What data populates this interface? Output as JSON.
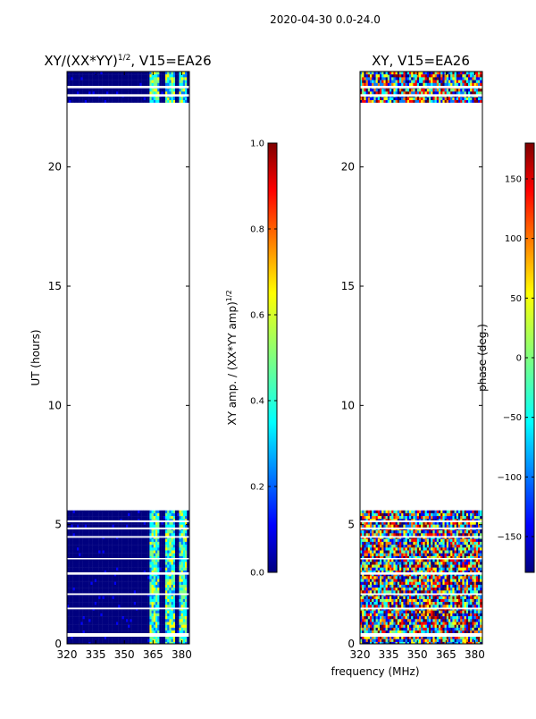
{
  "figure_title": "2020-04-30 0.0-24.0",
  "chart_data": [
    {
      "type": "heatmap",
      "title_main": "XY/(XX*YY)",
      "title_exp": "1/2",
      "title_tail": ", V15=EA26",
      "xlabel": "",
      "ylabel": "UT (hours)",
      "xlim": [
        320,
        384
      ],
      "ylim": [
        0,
        24
      ],
      "xticks": [
        320,
        335,
        350,
        365,
        380
      ],
      "yticks": [
        0,
        5,
        10,
        15,
        20
      ],
      "data_coverage_hours": [
        [
          0.0,
          5.6
        ],
        [
          22.7,
          24.0
        ]
      ],
      "flagged_gap_hours": [
        [
          0.3,
          0.45
        ],
        [
          1.45,
          1.52
        ],
        [
          2.05,
          2.12
        ],
        [
          2.9,
          3.0
        ],
        [
          3.55,
          3.6
        ],
        [
          4.45,
          4.52
        ],
        [
          4.8,
          4.88
        ],
        [
          5.1,
          5.18
        ],
        [
          22.95,
          23.05
        ],
        [
          23.3,
          23.4
        ]
      ],
      "bright_band_mhz": [
        [
          363,
          368
        ],
        [
          371,
          376
        ],
        [
          378,
          382
        ]
      ],
      "colormap": "jet",
      "colorbar": {
        "label_main": "XY amp. / (XX*YY amp)",
        "label_exp": "1/2",
        "range": [
          0.0,
          1.0
        ],
        "ticks": [
          "0.0",
          "0.2",
          "0.4",
          "0.6",
          "0.8",
          "1.0"
        ]
      }
    },
    {
      "type": "heatmap",
      "title": "XY, V15=EA26",
      "xlabel": "frequency (MHz)",
      "ylabel": "",
      "xlim": [
        320,
        384
      ],
      "ylim": [
        0,
        24
      ],
      "xticks": [
        320,
        335,
        350,
        365,
        380
      ],
      "yticks": [
        0,
        5,
        10,
        15,
        20
      ],
      "data_coverage_hours": [
        [
          0.0,
          5.6
        ],
        [
          22.7,
          24.0
        ]
      ],
      "colormap": "jet",
      "colorbar": {
        "label": "phase (deg.)",
        "range": [
          -180,
          180
        ],
        "ticks": [
          "−150",
          "−100",
          "−50",
          "0",
          "50",
          "100",
          "150"
        ]
      }
    }
  ],
  "colors": {
    "jet": [
      "#00007f",
      "#0000ff",
      "#007fff",
      "#00ffff",
      "#7fff7f",
      "#ffff00",
      "#ff7f00",
      "#ff0000",
      "#7f0000"
    ]
  }
}
